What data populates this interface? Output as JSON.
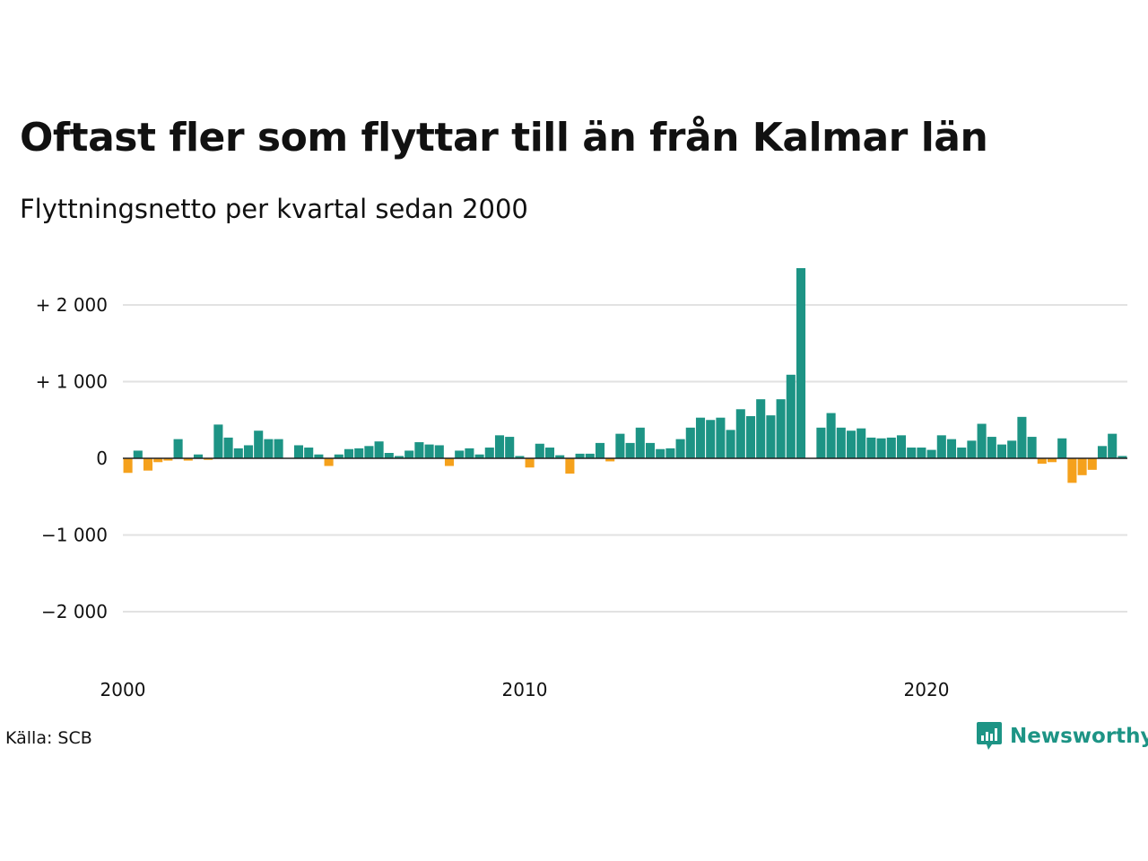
{
  "title": "Oftast fler som flyttar till än från Kalmar län",
  "subtitle": "Flyttningsnetto per kvartal sedan 2000",
  "source": "Källa: SCB",
  "brand": "Newsworthy",
  "colors": {
    "positive": "#1d9485",
    "negative": "#f5a11c",
    "grid": "#e2e2e2",
    "zero": "#222222"
  },
  "chart_data": {
    "type": "bar",
    "x_start": "2000 Q1",
    "frequency": "quarterly",
    "ylim": [
      -2500,
      2500
    ],
    "y_ticks": [
      {
        "value": 2000,
        "label": "+ 2 000"
      },
      {
        "value": 1000,
        "label": "+ 1 000"
      },
      {
        "value": 0,
        "label": "0"
      },
      {
        "value": -1000,
        "label": "−1 000"
      },
      {
        "value": -2000,
        "label": "−2 000"
      }
    ],
    "x_ticks": [
      "2000",
      "2010",
      "2020"
    ],
    "values": [
      -190,
      100,
      -160,
      -50,
      -30,
      250,
      -30,
      50,
      -20,
      440,
      270,
      130,
      170,
      360,
      250,
      250,
      0,
      170,
      140,
      50,
      -100,
      50,
      120,
      130,
      160,
      220,
      70,
      30,
      100,
      210,
      180,
      170,
      -100,
      100,
      130,
      50,
      140,
      300,
      280,
      30,
      -120,
      190,
      140,
      40,
      -200,
      60,
      60,
      200,
      -40,
      320,
      200,
      400,
      200,
      120,
      130,
      250,
      400,
      530,
      500,
      530,
      370,
      640,
      550,
      770,
      560,
      770,
      1090,
      2480,
      0,
      400,
      590,
      400,
      360,
      390,
      270,
      260,
      270,
      300,
      140,
      140,
      110,
      300,
      250,
      140,
      230,
      450,
      280,
      180,
      230,
      540,
      280,
      -70,
      -50,
      260,
      -320,
      -220,
      -150,
      160,
      320,
      30
    ]
  }
}
